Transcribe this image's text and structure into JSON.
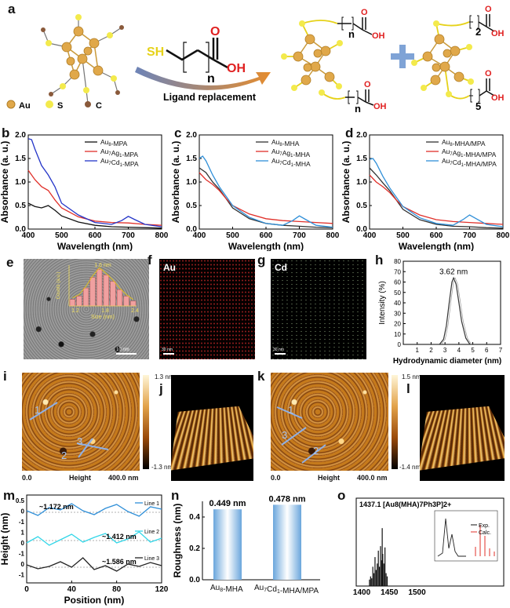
{
  "panels": {
    "a": {
      "label": "a",
      "legend": [
        {
          "symbol": "Au",
          "color": "#d9a441"
        },
        {
          "symbol": "S",
          "color": "#f2e84a"
        },
        {
          "symbol": "C",
          "color": "#8a5a3b"
        }
      ],
      "arrow_text": "Ligand replacement",
      "ligand_sh": "SH",
      "ligand_oh": "OH",
      "ligand_o": "O",
      "ligand_n": "n",
      "sub_n": "n",
      "sub_2": "2",
      "sub_5": "5",
      "oh": "OH",
      "o": "O"
    },
    "b": {
      "label": "b"
    },
    "c": {
      "label": "c"
    },
    "d": {
      "label": "d"
    },
    "e": {
      "label": "e",
      "scale": "10 nm",
      "inset_peak": "1.6 nm",
      "inset_ylabel": "Counts (a.u.)",
      "inset_xlabel": "Size (nm)",
      "inset_xticks": [
        "1.2",
        "1.8",
        "2.4"
      ]
    },
    "f": {
      "label": "f",
      "element": "Au",
      "scale": "30 nm"
    },
    "g": {
      "label": "g",
      "element": "Cd",
      "scale": "30 nm"
    },
    "h": {
      "label": "h",
      "peak": "3.62 nm",
      "ylabel": "Intensity (%)",
      "xlabel": "Hydrodynamic diameter (nm)",
      "xticks": [
        "1",
        "2",
        "3",
        "4",
        "5",
        "6",
        "7"
      ],
      "yticks": [
        "0",
        "10",
        "20",
        "30",
        "40",
        "50",
        "60",
        "70",
        "80"
      ]
    },
    "i": {
      "label": "i",
      "cbar_top": "1.3 nm",
      "cbar_bottom": "-1.3 nm",
      "lines": [
        "1",
        "3",
        "2"
      ],
      "x0": "0.0",
      "xmid": "Height",
      "xend": "400.0 nm"
    },
    "j": {
      "label": "j"
    },
    "k": {
      "label": "k",
      "cbar_top": "1.5 nm",
      "cbar_bottom": "-1.4 nm",
      "lines": [
        "1",
        "3",
        "2"
      ],
      "x0": "0.0",
      "xmid": "Height",
      "xend": "400.0 nm"
    },
    "l": {
      "label": "l"
    },
    "m": {
      "label": "m",
      "ylabel": "Height (nm)",
      "xlabel": "Position (nm)",
      "xticks": [
        "0",
        "40",
        "80",
        "120"
      ],
      "line_names": [
        "Line 1",
        "Line 2",
        "Line 3"
      ],
      "annot": [
        "~1.172 nm",
        "~1.412 nm",
        "~1.586 nm"
      ]
    },
    "n": {
      "label": "n",
      "ylabel": "Roughness (nm)",
      "bars": [
        {
          "name": "Au8-MHA",
          "value": 0.449,
          "text": "0.449 nm"
        },
        {
          "name": "Au7Cd1-MHA/MPA",
          "value": 0.478,
          "text": "0.478 nm"
        }
      ],
      "yticks": [
        "0.0",
        "0.2",
        "0.4"
      ]
    },
    "o": {
      "label": "o",
      "title": "1437.1 [Au8(MHA)7Ph3P]2+",
      "legend": [
        "Exp.",
        "Calc."
      ],
      "xticks": [
        "1400",
        "1450",
        "1500"
      ]
    }
  },
  "chart_data": [
    {
      "type": "line",
      "id": "b",
      "xlabel": "Wavelength (nm)",
      "ylabel": "Absorbance (a. u.)",
      "xlim": [
        400,
        800
      ],
      "ylim": [
        0,
        2.0
      ],
      "xticks": [
        400,
        500,
        600,
        700,
        800
      ],
      "yticks": [
        0,
        0.5,
        1.0,
        1.5,
        2.0
      ],
      "series": [
        {
          "name": "Au8-MPA",
          "color": "#111111",
          "x": [
            400,
            420,
            440,
            460,
            480,
            500,
            550,
            600,
            650,
            700,
            750,
            800
          ],
          "y": [
            0.55,
            0.48,
            0.45,
            0.5,
            0.4,
            0.28,
            0.15,
            0.08,
            0.05,
            0.04,
            0.03,
            0.02
          ]
        },
        {
          "name": "Au7Ag1-MPA",
          "color": "#e0302a",
          "x": [
            400,
            420,
            440,
            460,
            480,
            500,
            550,
            600,
            650,
            700,
            750,
            800
          ],
          "y": [
            1.25,
            1.05,
            0.9,
            0.82,
            0.62,
            0.45,
            0.26,
            0.17,
            0.14,
            0.13,
            0.1,
            0.08
          ]
        },
        {
          "name": "Au7Cd1-MPA",
          "color": "#2435c8",
          "x": [
            400,
            410,
            420,
            440,
            460,
            480,
            500,
            550,
            600,
            650,
            680,
            700,
            720,
            750,
            800
          ],
          "y": [
            1.92,
            1.9,
            1.7,
            1.35,
            1.15,
            0.9,
            0.55,
            0.3,
            0.14,
            0.1,
            0.18,
            0.27,
            0.2,
            0.1,
            0.05
          ]
        }
      ]
    },
    {
      "type": "line",
      "id": "c",
      "xlabel": "Wavelength (nm)",
      "ylabel": "Absorbance (a. u.)",
      "xlim": [
        400,
        800
      ],
      "ylim": [
        0,
        2.0
      ],
      "xticks": [
        400,
        500,
        600,
        700,
        800
      ],
      "yticks": [
        0,
        0.5,
        1.0,
        1.5,
        2.0
      ],
      "series": [
        {
          "name": "Au8-MHA",
          "color": "#333333",
          "x": [
            400,
            420,
            440,
            460,
            480,
            500,
            550,
            600,
            650,
            700,
            750,
            800
          ],
          "y": [
            1.3,
            1.2,
            1.0,
            0.85,
            0.65,
            0.45,
            0.22,
            0.12,
            0.08,
            0.06,
            0.04,
            0.03
          ]
        },
        {
          "name": "Au7Ag1-MHA",
          "color": "#e0302a",
          "x": [
            400,
            420,
            440,
            460,
            480,
            500,
            550,
            600,
            650,
            700,
            750,
            800
          ],
          "y": [
            1.2,
            1.05,
            0.95,
            0.82,
            0.65,
            0.5,
            0.32,
            0.22,
            0.18,
            0.16,
            0.14,
            0.12
          ]
        },
        {
          "name": "Au7Cd1-MHA",
          "color": "#2f8fd8",
          "x": [
            400,
            410,
            420,
            440,
            460,
            480,
            500,
            550,
            600,
            650,
            680,
            700,
            720,
            750,
            800
          ],
          "y": [
            1.5,
            1.55,
            1.45,
            1.15,
            0.9,
            0.7,
            0.5,
            0.25,
            0.12,
            0.08,
            0.18,
            0.28,
            0.2,
            0.08,
            0.04
          ]
        }
      ]
    },
    {
      "type": "line",
      "id": "d",
      "xlabel": "Wavelength (nm)",
      "ylabel": "Absorbance (a. u.)",
      "xlim": [
        400,
        800
      ],
      "ylim": [
        0,
        2.0
      ],
      "xticks": [
        400,
        500,
        600,
        700,
        800
      ],
      "yticks": [
        0,
        0.5,
        1.0,
        1.5,
        2.0
      ],
      "series": [
        {
          "name": "Au8-MHA/MPA",
          "color": "#333333",
          "x": [
            400,
            420,
            440,
            460,
            480,
            500,
            550,
            600,
            650,
            700,
            750,
            800
          ],
          "y": [
            1.3,
            1.15,
            0.98,
            0.82,
            0.62,
            0.42,
            0.2,
            0.1,
            0.06,
            0.05,
            0.03,
            0.02
          ]
        },
        {
          "name": "Au7Ag1-MHA/MPA",
          "color": "#e0302a",
          "x": [
            400,
            420,
            440,
            460,
            480,
            500,
            550,
            600,
            650,
            700,
            750,
            800
          ],
          "y": [
            1.15,
            1.0,
            0.9,
            0.78,
            0.62,
            0.48,
            0.3,
            0.2,
            0.16,
            0.14,
            0.12,
            0.1
          ]
        },
        {
          "name": "Au7Cd1-MHA/MPA",
          "color": "#2f8fd8",
          "x": [
            400,
            410,
            420,
            440,
            460,
            480,
            500,
            550,
            600,
            650,
            680,
            700,
            720,
            750,
            800
          ],
          "y": [
            1.48,
            1.5,
            1.4,
            1.12,
            0.88,
            0.68,
            0.48,
            0.24,
            0.12,
            0.08,
            0.2,
            0.3,
            0.22,
            0.1,
            0.05
          ]
        }
      ]
    },
    {
      "type": "line",
      "id": "h",
      "xlabel": "Hydrodynamic diameter (nm)",
      "ylabel": "Intensity (%)",
      "xlim": [
        0,
        7
      ],
      "ylim": [
        0,
        80
      ],
      "series": [
        {
          "name": "",
          "color": "#333333",
          "x": [
            2.6,
            2.9,
            3.1,
            3.3,
            3.5,
            3.62,
            3.8,
            4.0,
            4.2,
            4.5,
            4.8
          ],
          "y": [
            0,
            5,
            18,
            40,
            60,
            64,
            58,
            40,
            22,
            6,
            0
          ]
        }
      ]
    },
    {
      "type": "bar",
      "id": "e-inset",
      "xlabel": "Size (nm)",
      "ylabel": "Counts (a.u.)",
      "categories": [
        "1.2",
        "1.3",
        "1.4",
        "1.5",
        "1.6",
        "1.7",
        "1.8",
        "1.9",
        "2.0",
        "2.1"
      ],
      "values": [
        8,
        12,
        22,
        35,
        45,
        38,
        30,
        20,
        12,
        6
      ]
    },
    {
      "type": "line",
      "id": "m",
      "xlabel": "Position (nm)",
      "ylabel": "Height (nm)",
      "xlim": [
        0,
        120
      ],
      "series": [
        {
          "name": "Line 1",
          "color": "#2f8fd8",
          "x": [
            0,
            10,
            20,
            30,
            40,
            50,
            60,
            70,
            80,
            90,
            100,
            110,
            120
          ],
          "y": [
            0.2,
            -0.4,
            0.6,
            0.3,
            1.1,
            0.2,
            -0.3,
            0.5,
            1.0,
            0.1,
            -0.5,
            0.7,
            0.4
          ]
        },
        {
          "name": "Line 2",
          "color": "#32d6e8",
          "x": [
            0,
            10,
            20,
            30,
            40,
            50,
            60,
            70,
            80,
            90,
            100,
            110,
            120
          ],
          "y": [
            -0.3,
            0.5,
            -0.6,
            0.1,
            0.8,
            -0.2,
            0.4,
            0.9,
            -0.3,
            0.2,
            1.1,
            -0.2,
            0.3
          ]
        },
        {
          "name": "Line 3",
          "color": "#222222",
          "x": [
            0,
            10,
            20,
            30,
            40,
            50,
            60,
            70,
            80,
            90,
            100,
            110,
            120
          ],
          "y": [
            0.3,
            -0.2,
            0.1,
            0.7,
            0.0,
            1.2,
            -0.3,
            0.2,
            -0.5,
            0.4,
            0.1,
            0.6,
            0.2
          ]
        }
      ]
    },
    {
      "type": "bar",
      "id": "n",
      "ylabel": "Roughness (nm)",
      "categories": [
        "Au8-MHA",
        "Au7Cd1-MHA/MPA"
      ],
      "values": [
        0.449,
        0.478
      ],
      "ylim": [
        0,
        0.5
      ]
    },
    {
      "type": "bar",
      "id": "o",
      "title": "1437.1 [Au8(MHA)7Ph3P]2+",
      "xlim": [
        1390,
        1510
      ],
      "x": [
        1414,
        1416,
        1418,
        1420,
        1422,
        1424,
        1426,
        1428,
        1430,
        1432,
        1434,
        1436,
        1437,
        1438,
        1440,
        1442,
        1444,
        1446
      ],
      "values": [
        0.1,
        0.15,
        0.12,
        0.3,
        0.2,
        0.45,
        0.25,
        0.35,
        0.55,
        0.3,
        0.62,
        0.4,
        0.9,
        0.5,
        0.35,
        0.6,
        0.2,
        0.15
      ]
    }
  ]
}
